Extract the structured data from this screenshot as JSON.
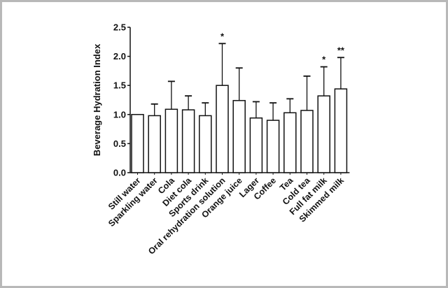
{
  "chart_data": {
    "type": "bar",
    "title": "",
    "xlabel": "",
    "ylabel": "Beverage Hydration Index",
    "ylim": [
      0,
      2.5
    ],
    "yticks": [
      "0.0",
      "0.5",
      "1.0",
      "1.5",
      "2.0",
      "2.5"
    ],
    "grid": false,
    "categories": [
      "Still water",
      "Sparkling water",
      "Cola",
      "Diet cola",
      "Sports drink",
      "Oral rehydration solution",
      "Orange juice",
      "Lager",
      "Coffee",
      "Tea",
      "Cold tea",
      "Full fat milk",
      "Skimmed milk"
    ],
    "values": [
      1.0,
      0.98,
      1.09,
      1.08,
      0.98,
      1.5,
      1.24,
      0.94,
      0.9,
      1.03,
      1.07,
      1.32,
      1.44
    ],
    "error_upper": [
      null,
      1.18,
      1.57,
      1.32,
      1.2,
      2.22,
      1.8,
      1.22,
      1.2,
      1.27,
      1.66,
      1.82,
      1.98
    ],
    "annotations": [
      "",
      "",
      "",
      "",
      "",
      "*",
      "",
      "",
      "",
      "",
      "",
      "*",
      "**"
    ],
    "bar_fill": "#ffffff",
    "bar_stroke": "#111111"
  }
}
